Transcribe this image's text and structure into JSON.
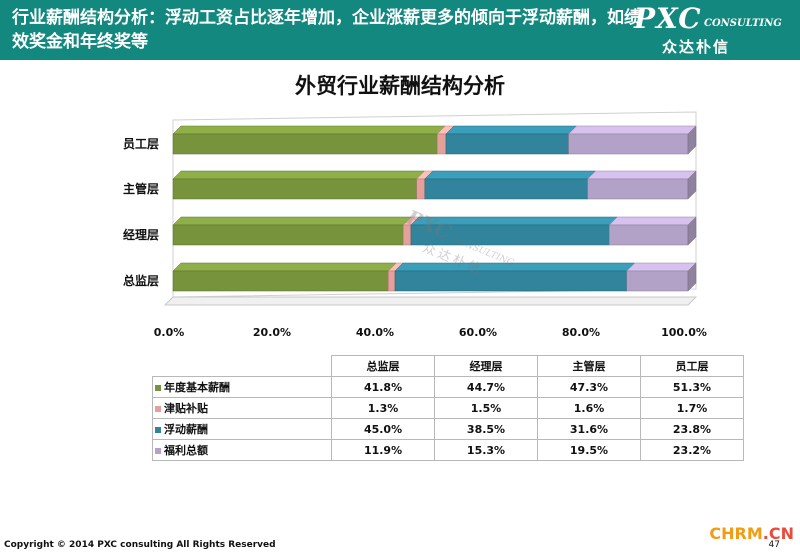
{
  "header": {
    "title": "行业薪酬结构分析：浮动工资占比逐年增加，企业涨薪更多的倾向于浮动薪酬，如绩效奖金和年终奖等",
    "logo_main": "PXC",
    "logo_sub": "CONSULTING",
    "logo_cn": "众达朴信"
  },
  "watermark": {
    "main": "PXC",
    "sub": "CONSULTING",
    "cn": "众达朴信"
  },
  "colors": {
    "header_bg": "#13887f",
    "series": [
      "#77933c",
      "#e6a09b",
      "#31849b",
      "#b3a2c7"
    ]
  },
  "chart_data": {
    "type": "bar",
    "orientation": "horizontal",
    "stacked": "percent",
    "title": "外贸行业薪酬结构分析",
    "categories": [
      "员工层",
      "主管层",
      "经理层",
      "总监层"
    ],
    "series": [
      {
        "name": "年度基本薪酬",
        "values": [
          51.3,
          47.3,
          44.7,
          41.8
        ]
      },
      {
        "name": "津贴补贴",
        "values": [
          1.7,
          1.6,
          1.5,
          1.3
        ]
      },
      {
        "name": "浮动薪酬",
        "values": [
          23.8,
          31.6,
          38.5,
          45.0
        ]
      },
      {
        "name": "福利总额",
        "values": [
          23.2,
          19.5,
          15.3,
          11.9
        ]
      }
    ],
    "xlim": [
      0,
      100
    ],
    "xticks": [
      "0.0%",
      "20.0%",
      "40.0%",
      "60.0%",
      "80.0%",
      "100.0%"
    ],
    "xlabel": "",
    "ylabel": "",
    "grid": false,
    "legend": "table-below"
  },
  "table": {
    "columns": [
      "总监层",
      "经理层",
      "主管层",
      "员工层"
    ],
    "rows": [
      {
        "label": "年度基本薪酬",
        "cells": [
          "41.8%",
          "44.7%",
          "47.3%",
          "51.3%"
        ]
      },
      {
        "label": "津贴补贴",
        "cells": [
          "1.3%",
          "1.5%",
          "1.6%",
          "1.7%"
        ]
      },
      {
        "label": "浮动薪酬",
        "cells": [
          "45.0%",
          "38.5%",
          "31.6%",
          "23.8%"
        ]
      },
      {
        "label": "福利总额",
        "cells": [
          "11.9%",
          "15.3%",
          "19.5%",
          "23.2%"
        ]
      }
    ]
  },
  "footer": {
    "copyright": "Copyright © 2014  PXC consulting All Rights Reserved",
    "site_a": "CHRM",
    "site_b": ".CN",
    "page": "47"
  }
}
